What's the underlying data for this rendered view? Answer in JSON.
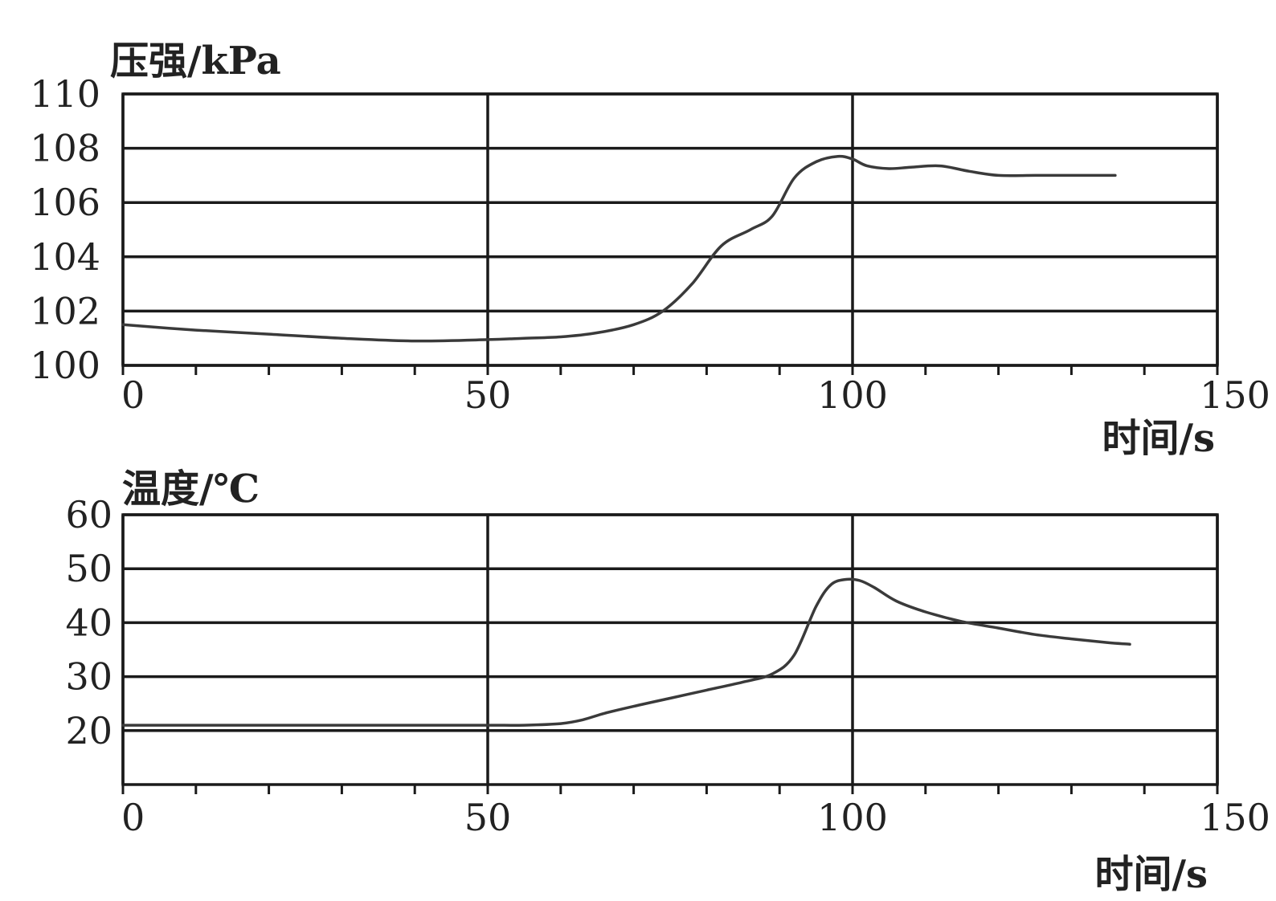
{
  "chart_data": [
    {
      "type": "line",
      "ylabel": "压强/kPa",
      "xlabel": "时间/s",
      "xlim": [
        0,
        150
      ],
      "ylim": [
        100,
        110
      ],
      "xticks": [
        "0",
        "50",
        "100",
        "150"
      ],
      "yticks": [
        "100",
        "102",
        "104",
        "106",
        "108",
        "110"
      ],
      "grid": true,
      "series": [
        {
          "x": [
            0,
            10,
            20,
            30,
            40,
            50,
            55,
            60,
            65,
            70,
            74,
            78,
            82,
            86,
            89,
            92,
            95,
            98,
            100,
            102,
            105,
            108,
            112,
            116,
            120,
            125,
            130,
            135,
            136
          ],
          "y": [
            101.5,
            101.3,
            101.15,
            101.0,
            100.9,
            100.95,
            101.0,
            101.05,
            101.2,
            101.5,
            102.0,
            103.0,
            104.4,
            105.0,
            105.5,
            106.9,
            107.5,
            107.7,
            107.6,
            107.35,
            107.25,
            107.3,
            107.35,
            107.15,
            107.0,
            107.0,
            107.0,
            107.0,
            107.0
          ]
        }
      ]
    },
    {
      "type": "line",
      "ylabel": "温度/℃",
      "xlabel": "时间/s",
      "xlim": [
        0,
        150
      ],
      "ylim": [
        10,
        60
      ],
      "xticks": [
        "0",
        "50",
        "100",
        "150"
      ],
      "yticks": [
        "20",
        "30",
        "40",
        "50",
        "60"
      ],
      "grid": true,
      "series": [
        {
          "x": [
            0,
            10,
            20,
            30,
            40,
            50,
            55,
            60,
            63,
            66,
            70,
            75,
            80,
            85,
            89,
            92,
            95,
            97,
            99,
            101,
            103,
            106,
            110,
            115,
            120,
            125,
            130,
            135,
            138
          ],
          "y": [
            21,
            21,
            21,
            21,
            21,
            21,
            21,
            21.3,
            22,
            23.2,
            24.5,
            26,
            27.5,
            29,
            30.5,
            34,
            43,
            47,
            48,
            47.8,
            46.5,
            44,
            42,
            40.2,
            39,
            37.8,
            37,
            36.3,
            36
          ]
        }
      ]
    }
  ]
}
